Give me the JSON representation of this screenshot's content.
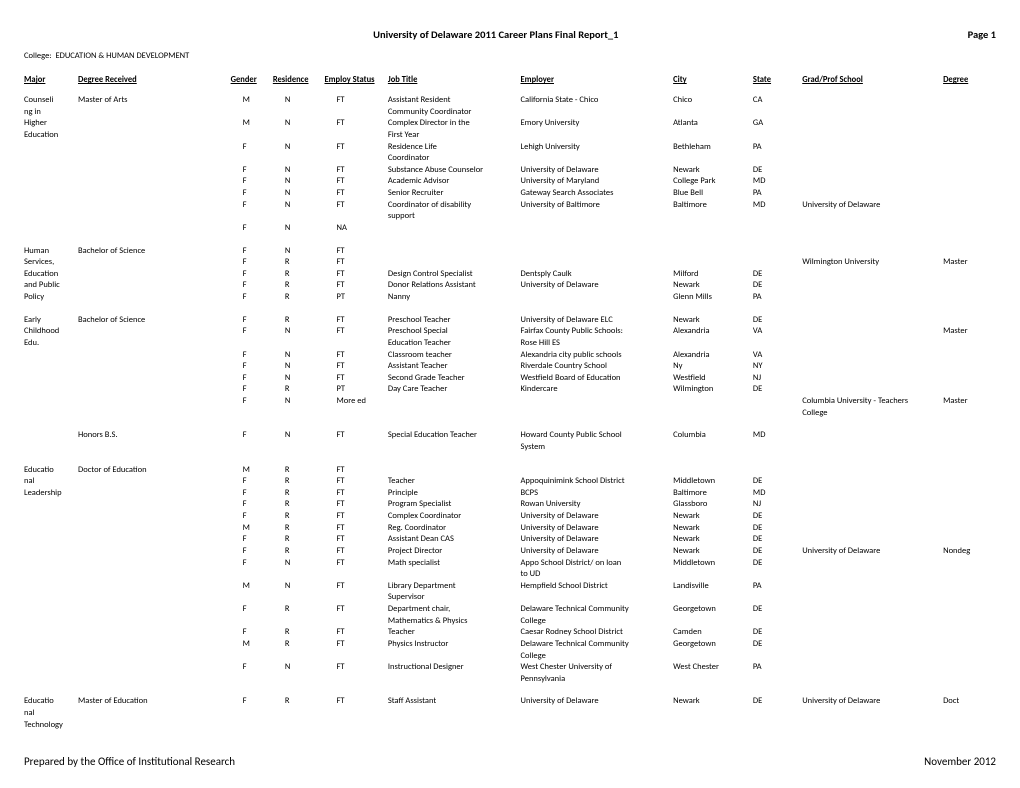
{
  "header": {
    "title": "University of Delaware 2011 Career Plans Final Report_1",
    "page": "Page 1"
  },
  "college_label": "College:",
  "college_name": "EDUCATION & HUMAN DEVELOPMENT",
  "columns": {
    "major": "Major",
    "degree": "Degree Received",
    "gender": "Gender",
    "residence": "Residence",
    "employ": "Employ Status",
    "job": "Job Title",
    "employer": "Employer",
    "city": "City",
    "state": "State",
    "grad": "Grad/Prof School",
    "gdeg": "Degree"
  },
  "rows": [
    {
      "major": "Counseli",
      "degree": "Master of Arts",
      "g": "M",
      "r": "N",
      "e": "FT",
      "job": "Assistant Resident",
      "emp": "California State - Chico",
      "city": "Chico",
      "st": "CA",
      "grad": "",
      "gdeg": ""
    },
    {
      "major": "ng in",
      "degree": "",
      "g": "",
      "r": "",
      "e": "",
      "job": "Community Coordinator",
      "emp": "",
      "city": "",
      "st": "",
      "grad": "",
      "gdeg": ""
    },
    {
      "major": "Higher",
      "degree": "",
      "g": "M",
      "r": "N",
      "e": "FT",
      "job": "Complex Director in the",
      "emp": "Emory University",
      "city": "Atlanta",
      "st": "GA",
      "grad": "",
      "gdeg": ""
    },
    {
      "major": "Education",
      "degree": "",
      "g": "",
      "r": "",
      "e": "",
      "job": "First Year",
      "emp": "",
      "city": "",
      "st": "",
      "grad": "",
      "gdeg": ""
    },
    {
      "major": "",
      "degree": "",
      "g": "F",
      "r": "N",
      "e": "FT",
      "job": "Residence Life",
      "emp": "Lehigh University",
      "city": "Bethleham",
      "st": "PA",
      "grad": "",
      "gdeg": ""
    },
    {
      "major": "",
      "degree": "",
      "g": "",
      "r": "",
      "e": "",
      "job": "Coordinator",
      "emp": "",
      "city": "",
      "st": "",
      "grad": "",
      "gdeg": ""
    },
    {
      "major": "",
      "degree": "",
      "g": "F",
      "r": "N",
      "e": "FT",
      "job": "Substance Abuse Counselor",
      "emp": "University of Delaware",
      "city": "Newark",
      "st": "DE",
      "grad": "",
      "gdeg": ""
    },
    {
      "major": "",
      "degree": "",
      "g": "F",
      "r": "N",
      "e": "FT",
      "job": "Academic Advisor",
      "emp": "University of Maryland",
      "city": "College Park",
      "st": "MD",
      "grad": "",
      "gdeg": ""
    },
    {
      "major": "",
      "degree": "",
      "g": "F",
      "r": "N",
      "e": "FT",
      "job": "Senior Recruiter",
      "emp": "Gateway Search Associates",
      "city": "Blue Bell",
      "st": "PA",
      "grad": "",
      "gdeg": ""
    },
    {
      "major": "",
      "degree": "",
      "g": "F",
      "r": "N",
      "e": "FT",
      "job": "Coordinator of disability",
      "emp": "University of Baltimore",
      "city": "Baltimore",
      "st": "MD",
      "grad": "University of Delaware",
      "gdeg": ""
    },
    {
      "major": "",
      "degree": "",
      "g": "",
      "r": "",
      "e": "",
      "job": "support",
      "emp": "",
      "city": "",
      "st": "",
      "grad": "",
      "gdeg": ""
    },
    {
      "major": "",
      "degree": "",
      "g": "F",
      "r": "N",
      "e": "NA",
      "job": "",
      "emp": "",
      "city": "",
      "st": "",
      "grad": "",
      "gdeg": ""
    },
    {
      "gap": true
    },
    {
      "major": "Human",
      "degree": "Bachelor of Science",
      "g": "F",
      "r": "N",
      "e": "FT",
      "job": "",
      "emp": "",
      "city": "",
      "st": "",
      "grad": "",
      "gdeg": ""
    },
    {
      "major": "Services,",
      "degree": "",
      "g": "F",
      "r": "R",
      "e": "FT",
      "job": "",
      "emp": "",
      "city": "",
      "st": "",
      "grad": "Wilmington University",
      "gdeg": "Master"
    },
    {
      "major": "Education",
      "degree": "",
      "g": "F",
      "r": "R",
      "e": "FT",
      "job": "Design Control Specialist",
      "emp": "Dentsply Caulk",
      "city": "Milford",
      "st": "DE",
      "grad": "",
      "gdeg": ""
    },
    {
      "major": "and Public",
      "degree": "",
      "g": "F",
      "r": "R",
      "e": "FT",
      "job": "Donor Relations Assistant",
      "emp": "University of Delaware",
      "city": "Newark",
      "st": "DE",
      "grad": "",
      "gdeg": ""
    },
    {
      "major": "Policy",
      "degree": "",
      "g": "F",
      "r": "R",
      "e": "PT",
      "job": "Nanny",
      "emp": "",
      "city": "Glenn Mills",
      "st": "PA",
      "grad": "",
      "gdeg": ""
    },
    {
      "gap": true
    },
    {
      "major": "Early",
      "degree": "Bachelor of Science",
      "g": "F",
      "r": "R",
      "e": "FT",
      "job": "Preschool Teacher",
      "emp": "University of Delaware ELC",
      "city": "Newark",
      "st": "DE",
      "grad": "",
      "gdeg": ""
    },
    {
      "major": "Childhood",
      "degree": "",
      "g": "F",
      "r": "N",
      "e": "FT",
      "job": "Preschool Special",
      "emp": "Fairfax County Public Schools:",
      "city": "Alexandria",
      "st": "VA",
      "grad": "",
      "gdeg": "Master"
    },
    {
      "major": "Edu.",
      "degree": "",
      "g": "",
      "r": "",
      "e": "",
      "job": "Education Teacher",
      "emp": "Rose Hill ES",
      "city": "",
      "st": "",
      "grad": "",
      "gdeg": ""
    },
    {
      "major": "",
      "degree": "",
      "g": "F",
      "r": "N",
      "e": "FT",
      "job": "Classroom teacher",
      "emp": "Alexandria city public schools",
      "city": "Alexandria",
      "st": "VA",
      "grad": "",
      "gdeg": ""
    },
    {
      "major": "",
      "degree": "",
      "g": "F",
      "r": "N",
      "e": "FT",
      "job": "Assistant Teacher",
      "emp": "Riverdale Country School",
      "city": "Ny",
      "st": "NY",
      "grad": "",
      "gdeg": ""
    },
    {
      "major": "",
      "degree": "",
      "g": "F",
      "r": "N",
      "e": "FT",
      "job": "Second Grade Teacher",
      "emp": "Westfield Board of Education",
      "city": "Westfield",
      "st": "NJ",
      "grad": "",
      "gdeg": ""
    },
    {
      "major": "",
      "degree": "",
      "g": "F",
      "r": "R",
      "e": "PT",
      "job": "Day Care Teacher",
      "emp": "Kindercare",
      "city": "Wilmington",
      "st": "DE",
      "grad": "",
      "gdeg": ""
    },
    {
      "major": "",
      "degree": "",
      "g": "F",
      "r": "N",
      "e": "More ed",
      "job": "",
      "emp": "",
      "city": "",
      "st": "",
      "grad": "Columbia University - Teachers",
      "gdeg": "Master"
    },
    {
      "major": "",
      "degree": "",
      "g": "",
      "r": "",
      "e": "",
      "job": "",
      "emp": "",
      "city": "",
      "st": "",
      "grad": "College",
      "gdeg": ""
    },
    {
      "gap": true
    },
    {
      "major": "",
      "degree": "Honors B.S.",
      "g": "F",
      "r": "N",
      "e": "FT",
      "job": "Special Education Teacher",
      "emp": "Howard County Public School",
      "city": "Columbia",
      "st": "MD",
      "grad": "",
      "gdeg": ""
    },
    {
      "major": "",
      "degree": "",
      "g": "",
      "r": "",
      "e": "",
      "job": "",
      "emp": "System",
      "city": "",
      "st": "",
      "grad": "",
      "gdeg": ""
    },
    {
      "gap": true
    },
    {
      "major": "Educatio",
      "degree": "Doctor of Education",
      "g": "M",
      "r": "R",
      "e": "FT",
      "job": "",
      "emp": "",
      "city": "",
      "st": "",
      "grad": "",
      "gdeg": ""
    },
    {
      "major": "nal",
      "degree": "",
      "g": "F",
      "r": "R",
      "e": "FT",
      "job": "Teacher",
      "emp": "Appoquinimink School District",
      "city": "Middletown",
      "st": "DE",
      "grad": "",
      "gdeg": ""
    },
    {
      "major": "Leadership",
      "degree": "",
      "g": "F",
      "r": "R",
      "e": "FT",
      "job": "Principle",
      "emp": "BCPS",
      "city": "Baltimore",
      "st": "MD",
      "grad": "",
      "gdeg": ""
    },
    {
      "major": "",
      "degree": "",
      "g": "F",
      "r": "R",
      "e": "FT",
      "job": "Program Specialist",
      "emp": "Rowan University",
      "city": "Glassboro",
      "st": "NJ",
      "grad": "",
      "gdeg": ""
    },
    {
      "major": "",
      "degree": "",
      "g": "F",
      "r": "R",
      "e": "FT",
      "job": "Complex Coordinator",
      "emp": "University of Delaware",
      "city": "Newark",
      "st": "DE",
      "grad": "",
      "gdeg": ""
    },
    {
      "major": "",
      "degree": "",
      "g": "M",
      "r": "R",
      "e": "FT",
      "job": "Reg. Coordinator",
      "emp": "University of Delaware",
      "city": "Newark",
      "st": "DE",
      "grad": "",
      "gdeg": ""
    },
    {
      "major": "",
      "degree": "",
      "g": "F",
      "r": "R",
      "e": "FT",
      "job": "Assistant Dean CAS",
      "emp": "University of Delaware",
      "city": "Newark",
      "st": "DE",
      "grad": "",
      "gdeg": ""
    },
    {
      "major": "",
      "degree": "",
      "g": "F",
      "r": "R",
      "e": "FT",
      "job": "Project Director",
      "emp": "University of Delaware",
      "city": "Newark",
      "st": "DE",
      "grad": "University of Delaware",
      "gdeg": "Nondeg"
    },
    {
      "major": "",
      "degree": "",
      "g": "F",
      "r": "N",
      "e": "FT",
      "job": "Math specialist",
      "emp": "Appo School District/ on loan",
      "city": "Middletown",
      "st": "DE",
      "grad": "",
      "gdeg": ""
    },
    {
      "major": "",
      "degree": "",
      "g": "",
      "r": "",
      "e": "",
      "job": "",
      "emp": "to UD",
      "city": "",
      "st": "",
      "grad": "",
      "gdeg": ""
    },
    {
      "major": "",
      "degree": "",
      "g": "M",
      "r": "N",
      "e": "FT",
      "job": "Library Department",
      "emp": "Hempfield School District",
      "city": "Landisville",
      "st": "PA",
      "grad": "",
      "gdeg": ""
    },
    {
      "major": "",
      "degree": "",
      "g": "",
      "r": "",
      "e": "",
      "job": "Supervisor",
      "emp": "",
      "city": "",
      "st": "",
      "grad": "",
      "gdeg": ""
    },
    {
      "major": "",
      "degree": "",
      "g": "F",
      "r": "R",
      "e": "FT",
      "job": "Department chair,",
      "emp": "Delaware Technical Community",
      "city": "Georgetown",
      "st": "DE",
      "grad": "",
      "gdeg": ""
    },
    {
      "major": "",
      "degree": "",
      "g": "",
      "r": "",
      "e": "",
      "job": "Mathematics & Physics",
      "emp": "College",
      "city": "",
      "st": "",
      "grad": "",
      "gdeg": ""
    },
    {
      "major": "",
      "degree": "",
      "g": "F",
      "r": "R",
      "e": "FT",
      "job": "Teacher",
      "emp": "Caesar Rodney School District",
      "city": "Camden",
      "st": "DE",
      "grad": "",
      "gdeg": ""
    },
    {
      "major": "",
      "degree": "",
      "g": "M",
      "r": "R",
      "e": "FT",
      "job": "Physics Instructor",
      "emp": "Delaware Technical Community",
      "city": "Georgetown",
      "st": "DE",
      "grad": "",
      "gdeg": ""
    },
    {
      "major": "",
      "degree": "",
      "g": "",
      "r": "",
      "e": "",
      "job": "",
      "emp": "College",
      "city": "",
      "st": "",
      "grad": "",
      "gdeg": ""
    },
    {
      "major": "",
      "degree": "",
      "g": "F",
      "r": "N",
      "e": "FT",
      "job": "Instructional Designer",
      "emp": "West Chester University of",
      "city": "West Chester",
      "st": "PA",
      "grad": "",
      "gdeg": ""
    },
    {
      "major": "",
      "degree": "",
      "g": "",
      "r": "",
      "e": "",
      "job": "",
      "emp": "Pennsylvania",
      "city": "",
      "st": "",
      "grad": "",
      "gdeg": ""
    },
    {
      "gap": true
    },
    {
      "major": "Educatio",
      "degree": "Master of Education",
      "g": "F",
      "r": "R",
      "e": "FT",
      "job": "Staff Assistant",
      "emp": "University of Delaware",
      "city": "Newark",
      "st": "DE",
      "grad": "University of Delaware",
      "gdeg": "Doct"
    },
    {
      "major": "nal",
      "degree": "",
      "g": "",
      "r": "",
      "e": "",
      "job": "",
      "emp": "",
      "city": "",
      "st": "",
      "grad": "",
      "gdeg": ""
    },
    {
      "major": "Technology",
      "degree": "",
      "g": "",
      "r": "",
      "e": "",
      "job": "",
      "emp": "",
      "city": "",
      "st": "",
      "grad": "",
      "gdeg": ""
    }
  ],
  "footer": {
    "left": "Prepared by the Office of Institutional Research",
    "right": "November 2012"
  }
}
